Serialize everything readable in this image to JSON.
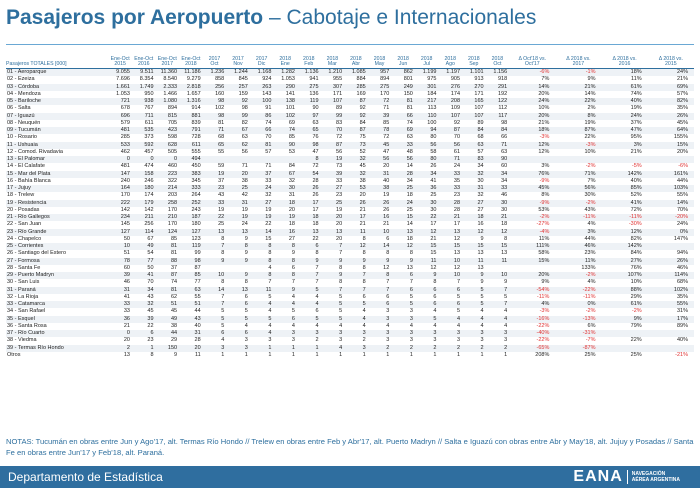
{
  "title": {
    "bold": "Pasajeros por Aeropuerto",
    "light": " – Cabotaje e Internacionales"
  },
  "table": {
    "headers": [
      "Pasajeros TOTALES [000]",
      "Ene-Oct\n2015",
      "Ene-Oct\n2016",
      "Ene-Oct\n2017",
      "Ene-Oct\n2018",
      "2017\nOct",
      "2017\nNov",
      "2017\nDic",
      "2018\nEne",
      "2018\nFeb",
      "2018\nMar",
      "2018\nAbr",
      "2018\nMay",
      "2018\nJun",
      "2018\nJul",
      "2018\nAgo",
      "2018\nSep",
      "2018\nOct",
      "Δ Oct'18 vs.\nOct'17",
      "Δ 2018 vs.\n2017",
      "Δ 2018 vs.\n2016",
      "Δ 2018 vs.\n2015"
    ],
    "rows": [
      [
        "01 - Aeroparque",
        "9.055",
        "9.511",
        "11.360",
        "11.186",
        "1.236",
        "1.244",
        "1.168",
        "1.282",
        "1.136",
        "1.210",
        "1.085",
        "957",
        "862",
        "1.199",
        "1.197",
        "1.101",
        "1.156",
        "-6%",
        "-1%",
        "18%",
        "24%"
      ],
      [
        "02 - Ezeiza",
        "7.696",
        "8.354",
        "8.540",
        "9.279",
        "858",
        "845",
        "924",
        "1.053",
        "941",
        "955",
        "884",
        "894",
        "801",
        "975",
        "905",
        "913",
        "918",
        "7%",
        "9%",
        "11%",
        "21%"
      ],
      [
        "03 - Córdoba",
        "1.661",
        "1.749",
        "2.333",
        "2.818",
        "256",
        "257",
        "263",
        "290",
        "275",
        "307",
        "285",
        "275",
        "249",
        "301",
        "276",
        "270",
        "291",
        "14%",
        "21%",
        "61%",
        "69%"
      ],
      [
        "04 - Mendoza",
        "1.053",
        "950",
        "1.466",
        "1.657",
        "160",
        "159",
        "143",
        "141",
        "136",
        "171",
        "169",
        "170",
        "150",
        "184",
        "174",
        "171",
        "192",
        "20%",
        "14%",
        "74%",
        "57%"
      ],
      [
        "05 - Bariloche",
        "721",
        "938",
        "1.080",
        "1.316",
        "98",
        "92",
        "100",
        "138",
        "119",
        "107",
        "87",
        "72",
        "81",
        "217",
        "208",
        "165",
        "122",
        "24%",
        "22%",
        "40%",
        "82%"
      ],
      [
        "06 - Salta",
        "678",
        "767",
        "894",
        "914",
        "102",
        "98",
        "91",
        "101",
        "90",
        "89",
        "92",
        "71",
        "81",
        "113",
        "109",
        "107",
        "112",
        "10%",
        "2%",
        "19%",
        "35%"
      ],
      [
        "07 - Iguazú",
        "696",
        "711",
        "815",
        "881",
        "98",
        "99",
        "86",
        "102",
        "97",
        "99",
        "92",
        "39",
        "66",
        "110",
        "107",
        "107",
        "117",
        "20%",
        "8%",
        "24%",
        "26%"
      ],
      [
        "08 - Neuquén",
        "579",
        "611",
        "705",
        "839",
        "81",
        "82",
        "74",
        "69",
        "63",
        "83",
        "84",
        "85",
        "74",
        "100",
        "92",
        "89",
        "98",
        "21%",
        "19%",
        "37%",
        "45%"
      ],
      [
        "09 - Tucumán",
        "481",
        "535",
        "423",
        "791",
        "71",
        "67",
        "66",
        "74",
        "65",
        "70",
        "87",
        "78",
        "69",
        "94",
        "87",
        "84",
        "84",
        "18%",
        "87%",
        "47%",
        "64%"
      ],
      [
        "10 - Rosario",
        "285",
        "373",
        "598",
        "728",
        "68",
        "63",
        "70",
        "85",
        "76",
        "72",
        "75",
        "72",
        "63",
        "80",
        "70",
        "68",
        "66",
        "-3%",
        "22%",
        "95%",
        "155%"
      ],
      [
        "11 - Ushuaia",
        "533",
        "592",
        "628",
        "611",
        "65",
        "62",
        "81",
        "90",
        "98",
        "87",
        "73",
        "45",
        "33",
        "56",
        "56",
        "63",
        "71",
        "12%",
        "-3%",
        "3%",
        "15%"
      ],
      [
        "12 - Comod. Rivadavia",
        "462",
        "457",
        "505",
        "555",
        "55",
        "56",
        "57",
        "53",
        "47",
        "56",
        "52",
        "47",
        "48",
        "58",
        "61",
        "57",
        "63",
        "12%",
        "10%",
        "21%",
        "20%"
      ],
      [
        "13 - El Palomar",
        "0",
        "0",
        "0",
        "494",
        "",
        "",
        "",
        "",
        "8",
        "19",
        "32",
        "56",
        "56",
        "80",
        "71",
        "83",
        "90",
        "",
        "",
        "",
        ""
      ],
      [
        "14 - El Calafate",
        "481",
        "474",
        "460",
        "450",
        "59",
        "71",
        "71",
        "84",
        "72",
        "73",
        "45",
        "20",
        "14",
        "26",
        "24",
        "34",
        "60",
        "3%",
        "-2%",
        "-5%",
        "-6%"
      ],
      [
        "15 - Mar del Plata",
        "147",
        "158",
        "223",
        "383",
        "19",
        "20",
        "37",
        "67",
        "54",
        "39",
        "32",
        "31",
        "28",
        "34",
        "33",
        "32",
        "34",
        "76%",
        "71%",
        "142%",
        "161%"
      ],
      [
        "16 - Bahía Blanca",
        "240",
        "246",
        "322",
        "345",
        "37",
        "38",
        "33",
        "32",
        "28",
        "33",
        "38",
        "40",
        "34",
        "41",
        "35",
        "30",
        "34",
        "-9%",
        "7%",
        "40%",
        "44%"
      ],
      [
        "17 - Jujuy",
        "164",
        "180",
        "214",
        "333",
        "23",
        "25",
        "24",
        "30",
        "26",
        "27",
        "53",
        "38",
        "25",
        "36",
        "33",
        "31",
        "33",
        "45%",
        "56%",
        "85%",
        "103%"
      ],
      [
        "18 - Trelew",
        "170",
        "174",
        "203",
        "264",
        "43",
        "42",
        "32",
        "31",
        "26",
        "23",
        "20",
        "19",
        "18",
        "25",
        "23",
        "32",
        "46",
        "8%",
        "30%",
        "52%",
        "55%"
      ],
      [
        "19 - Resistencia",
        "222",
        "179",
        "258",
        "252",
        "33",
        "31",
        "27",
        "18",
        "17",
        "25",
        "26",
        "26",
        "24",
        "30",
        "28",
        "27",
        "30",
        "-9%",
        "-2%",
        "41%",
        "14%"
      ],
      [
        "20 - Posadas",
        "142",
        "142",
        "170",
        "243",
        "19",
        "19",
        "19",
        "20",
        "17",
        "19",
        "21",
        "26",
        "25",
        "30",
        "28",
        "27",
        "30",
        "53%",
        "43%",
        "72%",
        "70%"
      ],
      [
        "21 - Río Gallegos",
        "234",
        "211",
        "210",
        "187",
        "22",
        "19",
        "19",
        "19",
        "18",
        "20",
        "17",
        "16",
        "15",
        "22",
        "21",
        "18",
        "21",
        "-2%",
        "-11%",
        "-11%",
        "-20%"
      ],
      [
        "22 - San Juan",
        "145",
        "256",
        "170",
        "180",
        "25",
        "24",
        "22",
        "18",
        "18",
        "20",
        "21",
        "21",
        "14",
        "17",
        "17",
        "16",
        "18",
        "-27%",
        "4%",
        "-30%",
        "24%"
      ],
      [
        "23 - Río Grande",
        "127",
        "114",
        "124",
        "127",
        "13",
        "13",
        "14",
        "16",
        "13",
        "13",
        "11",
        "10",
        "13",
        "12",
        "13",
        "12",
        "12",
        "-4%",
        "3%",
        "12%",
        "0%"
      ],
      [
        "24 - Chapelco",
        "50",
        "67",
        "85",
        "123",
        "8",
        "9",
        "15",
        "27",
        "22",
        "20",
        "8",
        "6",
        "18",
        "21",
        "12",
        "9",
        "8",
        "11%",
        "44%",
        "82%",
        "147%"
      ],
      [
        "25 - Corrientes",
        "10",
        "49",
        "81",
        "119",
        "7",
        "8",
        "8",
        "8",
        "6",
        "7",
        "12",
        "14",
        "12",
        "15",
        "15",
        "15",
        "15",
        "111%",
        "46%",
        "142%",
        ""
      ],
      [
        "26 - Santiago del Estero",
        "51",
        "54",
        "81",
        "99",
        "8",
        "9",
        "8",
        "9",
        "8",
        "7",
        "8",
        "8",
        "8",
        "15",
        "13",
        "13",
        "13",
        "58%",
        "23%",
        "84%",
        "94%"
      ],
      [
        "27 - Formosa",
        "78",
        "77",
        "88",
        "98",
        "9",
        "9",
        "8",
        "8",
        "9",
        "9",
        "9",
        "9",
        "9",
        "11",
        "10",
        "11",
        "11",
        "15%",
        "11%",
        "27%",
        "26%"
      ],
      [
        "28 - Santa Fe",
        "60",
        "50",
        "37",
        "87",
        "",
        "",
        "4",
        "6",
        "7",
        "8",
        "8",
        "12",
        "13",
        "12",
        "12",
        "13",
        "",
        "",
        "133%",
        "76%",
        "46%"
      ],
      [
        "29 - Puerto Madryn",
        "39",
        "41",
        "87",
        "85",
        "10",
        "9",
        "8",
        "8",
        "7",
        "9",
        "7",
        "8",
        "6",
        "9",
        "10",
        "9",
        "10",
        "20%",
        "-2%",
        "107%",
        "114%"
      ],
      [
        "30 - San Luis",
        "46",
        "70",
        "74",
        "77",
        "8",
        "8",
        "7",
        "7",
        "7",
        "8",
        "8",
        "7",
        "7",
        "8",
        "7",
        "9",
        "9",
        "9%",
        "4%",
        "10%",
        "68%"
      ],
      [
        "31 - Paraná",
        "31",
        "34",
        "81",
        "63",
        "14",
        "13",
        "11",
        "9",
        "5",
        "7",
        "7",
        "7",
        "6",
        "6",
        "6",
        "5",
        "7",
        "-54%",
        "-22%",
        "88%",
        "102%"
      ],
      [
        "32 - La Rioja",
        "41",
        "43",
        "62",
        "55",
        "7",
        "6",
        "5",
        "4",
        "4",
        "5",
        "6",
        "6",
        "5",
        "6",
        "5",
        "5",
        "5",
        "-11%",
        "-11%",
        "29%",
        "35%"
      ],
      [
        "33 - Catamarca",
        "33",
        "32",
        "51",
        "51",
        "7",
        "6",
        "4",
        "4",
        "4",
        "5",
        "5",
        "6",
        "5",
        "6",
        "6",
        "5",
        "7",
        "4%",
        "0%",
        "61%",
        "55%"
      ],
      [
        "34 - San Rafael",
        "33",
        "45",
        "45",
        "44",
        "5",
        "5",
        "4",
        "5",
        "6",
        "5",
        "4",
        "3",
        "3",
        "4",
        "5",
        "4",
        "4",
        "-3%",
        "-2%",
        "-2%",
        "31%"
      ],
      [
        "35 - Esquel",
        "36",
        "39",
        "49",
        "43",
        "5",
        "5",
        "5",
        "6",
        "5",
        "5",
        "4",
        "3",
        "3",
        "5",
        "4",
        "4",
        "4",
        "-16%",
        "-13%",
        "9%",
        "17%"
      ],
      [
        "36 - Santa Rosa",
        "21",
        "22",
        "38",
        "40",
        "5",
        "4",
        "4",
        "4",
        "4",
        "4",
        "4",
        "4",
        "4",
        "4",
        "4",
        "4",
        "4",
        "-22%",
        "6%",
        "79%",
        "89%"
      ],
      [
        "37 - Río Cuarto",
        "0",
        "6",
        "44",
        "31",
        "6",
        "6",
        "4",
        "3",
        "3",
        "3",
        "3",
        "3",
        "3",
        "3",
        "3",
        "3",
        "3",
        "-40%",
        "-31%",
        "",
        ""
      ],
      [
        "38 - Viedma",
        "20",
        "23",
        "29",
        "28",
        "4",
        "3",
        "3",
        "3",
        "2",
        "3",
        "2",
        "3",
        "3",
        "3",
        "3",
        "3",
        "3",
        "-22%",
        "-7%",
        "22%",
        "40%"
      ],
      [
        "39 - Termas Río Hondo",
        "2",
        "1",
        "150",
        "20",
        "3",
        "3",
        "1",
        "1",
        "1",
        "4",
        "3",
        "2",
        "2",
        "2",
        "2",
        "2",
        "2",
        "-65%",
        "-87%",
        "",
        ""
      ],
      [
        "Otros",
        "13",
        "8",
        "9",
        "11",
        "1",
        "1",
        "1",
        "1",
        "1",
        "1",
        "1",
        "1",
        "1",
        "1",
        "1",
        "1",
        "1",
        "208%",
        "25%",
        "25%",
        "-21%"
      ]
    ]
  },
  "notes": "NOTAS: Tucumán en obras entre Jun y Ago'17, alt. Termas Río Hondo // Trelew en obras entre Feb y Abr'17, alt. Puerto Madryn // Salta e Iguazú con obras entre Abr y May'18, alt. Jujuy y Posadas // Santa Fe en obras entre Jun'17 y Feb'18, alt. Paraná.",
  "footer": {
    "department": "Departamento de Estadística",
    "logo": "EANA",
    "logo_sub_1": "NAVEGACIÓN",
    "logo_sub_2": "AÉREA ARGENTINA"
  },
  "colors": {
    "accent": "#2e6f9e",
    "footer_bg": "#2f6e9f",
    "negative": "#e03030"
  }
}
